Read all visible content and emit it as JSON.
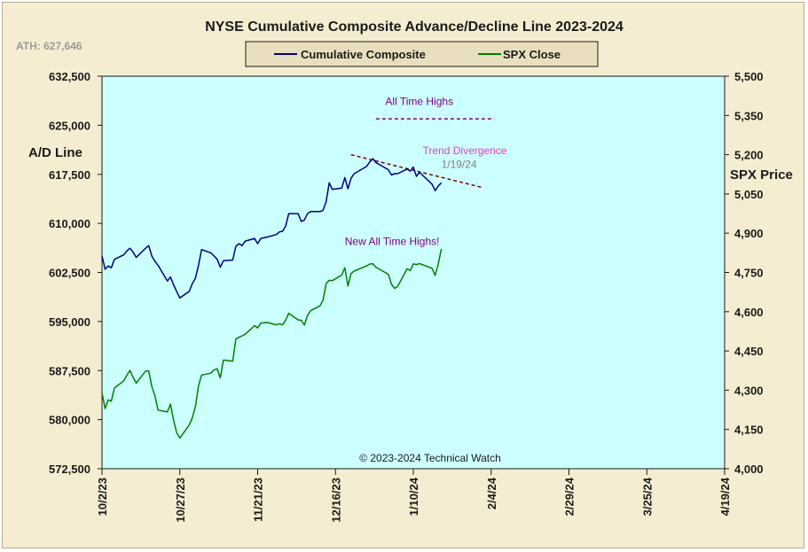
{
  "chart_data": {
    "type": "line",
    "title": "NYSE Cumulative  Composite  Advance/Decline  Line  2023-2024",
    "ath_label": "ATH: 627,646",
    "copyright": "© 2023-2024  Technical Watch",
    "left_axis": {
      "label": "A/D Line",
      "ylim": [
        572500,
        632500
      ],
      "ticks": [
        572500,
        580000,
        587500,
        595000,
        602500,
        610000,
        617500,
        625000,
        632500
      ],
      "tick_labels": [
        "572,500",
        "580,000",
        "587,500",
        "595,000",
        "602,500",
        "610,000",
        "617,500",
        "625,000",
        "632,500"
      ]
    },
    "right_axis": {
      "label": "SPX Price",
      "ylim": [
        4000,
        5500
      ],
      "ticks": [
        4000,
        4150,
        4300,
        4450,
        4600,
        4750,
        4900,
        5050,
        5200,
        5350,
        5500
      ],
      "tick_labels": [
        "4,000",
        "4,150",
        "4,300",
        "4,450",
        "4,600",
        "4,750",
        "4,900",
        "5,050",
        "5,200",
        "5,350",
        "5,500"
      ]
    },
    "x_axis": {
      "start": "2023-10-02",
      "end": "2024-04-19",
      "ticks": [
        "2023-10-02",
        "2023-10-27",
        "2023-11-21",
        "2023-12-16",
        "2024-01-10",
        "2024-02-04",
        "2024-02-29",
        "2024-03-25",
        "2024-04-19"
      ],
      "tick_labels": [
        "10/2/23",
        "10/27/23",
        "11/21/23",
        "12/16/23",
        "1/10/24",
        "2/4/24",
        "2/29/24",
        "3/25/24",
        "4/19/24"
      ]
    },
    "legend": {
      "placement": "top-center"
    },
    "grid": false,
    "colors": {
      "plot_bg": "#ccffff",
      "frame_bg": "#f5edd1",
      "ad_line": "#000080",
      "spx": "#008000",
      "trend": "#800000",
      "magenta": "#e040c0",
      "purple": "#800080"
    },
    "series": [
      {
        "name": "Cumulative Composite",
        "axis": "left",
        "color": "#000080",
        "points": [
          [
            "2023-10-02",
            605000
          ],
          [
            "2023-10-03",
            603000
          ],
          [
            "2023-10-04",
            603500
          ],
          [
            "2023-10-05",
            603200
          ],
          [
            "2023-10-06",
            604500
          ],
          [
            "2023-10-09",
            605200
          ],
          [
            "2023-10-10",
            605800
          ],
          [
            "2023-10-11",
            606200
          ],
          [
            "2023-10-12",
            605600
          ],
          [
            "2023-10-13",
            604800
          ],
          [
            "2023-10-16",
            606200
          ],
          [
            "2023-10-17",
            606600
          ],
          [
            "2023-10-18",
            605000
          ],
          [
            "2023-10-19",
            604200
          ],
          [
            "2023-10-20",
            603600
          ],
          [
            "2023-10-23",
            601200
          ],
          [
            "2023-10-24",
            601800
          ],
          [
            "2023-10-25",
            600600
          ],
          [
            "2023-10-26",
            599600
          ],
          [
            "2023-10-27",
            598600
          ],
          [
            "2023-10-30",
            599600
          ],
          [
            "2023-10-31",
            600800
          ],
          [
            "2023-11-01",
            601600
          ],
          [
            "2023-11-02",
            603600
          ],
          [
            "2023-11-03",
            606000
          ],
          [
            "2023-11-06",
            605500
          ],
          [
            "2023-11-07",
            605000
          ],
          [
            "2023-11-08",
            604500
          ],
          [
            "2023-11-09",
            603300
          ],
          [
            "2023-11-10",
            604300
          ],
          [
            "2023-11-13",
            604400
          ],
          [
            "2023-11-14",
            606500
          ],
          [
            "2023-11-15",
            606900
          ],
          [
            "2023-11-16",
            606600
          ],
          [
            "2023-11-17",
            607300
          ],
          [
            "2023-11-20",
            607700
          ],
          [
            "2023-11-21",
            606900
          ],
          [
            "2023-11-22",
            607700
          ],
          [
            "2023-11-24",
            607900
          ],
          [
            "2023-11-27",
            608300
          ],
          [
            "2023-11-28",
            608700
          ],
          [
            "2023-11-29",
            608800
          ],
          [
            "2023-11-30",
            609600
          ],
          [
            "2023-12-01",
            611500
          ],
          [
            "2023-12-04",
            611500
          ],
          [
            "2023-12-05",
            610300
          ],
          [
            "2023-12-06",
            610500
          ],
          [
            "2023-12-07",
            611500
          ],
          [
            "2023-12-08",
            611800
          ],
          [
            "2023-12-11",
            611800
          ],
          [
            "2023-12-12",
            612000
          ],
          [
            "2023-12-13",
            613300
          ],
          [
            "2023-12-14",
            616200
          ],
          [
            "2023-12-15",
            615200
          ],
          [
            "2023-12-18",
            615400
          ],
          [
            "2023-12-19",
            617000
          ],
          [
            "2023-12-20",
            615300
          ],
          [
            "2023-12-21",
            616900
          ],
          [
            "2023-12-22",
            617600
          ],
          [
            "2023-12-26",
            618700
          ],
          [
            "2023-12-27",
            619400
          ],
          [
            "2023-12-28",
            619900
          ],
          [
            "2023-12-29",
            619300
          ],
          [
            "2024-01-02",
            618200
          ],
          [
            "2024-01-03",
            617400
          ],
          [
            "2024-01-04",
            617600
          ],
          [
            "2024-01-05",
            617600
          ],
          [
            "2024-01-08",
            618300
          ],
          [
            "2024-01-09",
            618000
          ],
          [
            "2024-01-10",
            618600
          ],
          [
            "2024-01-11",
            617200
          ],
          [
            "2024-01-12",
            617800
          ],
          [
            "2024-01-16",
            616000
          ],
          [
            "2024-01-17",
            615000
          ],
          [
            "2024-01-18",
            615700
          ],
          [
            "2024-01-19",
            616200
          ]
        ]
      },
      {
        "name": "SPX Close",
        "axis": "right",
        "color": "#008000",
        "points": [
          [
            "2023-10-02",
            4290
          ],
          [
            "2023-10-03",
            4230
          ],
          [
            "2023-10-04",
            4263
          ],
          [
            "2023-10-05",
            4258
          ],
          [
            "2023-10-06",
            4308
          ],
          [
            "2023-10-09",
            4336
          ],
          [
            "2023-10-10",
            4358
          ],
          [
            "2023-10-11",
            4376
          ],
          [
            "2023-10-12",
            4349
          ],
          [
            "2023-10-13",
            4327
          ],
          [
            "2023-10-16",
            4373
          ],
          [
            "2023-10-17",
            4373
          ],
          [
            "2023-10-18",
            4314
          ],
          [
            "2023-10-19",
            4278
          ],
          [
            "2023-10-20",
            4224
          ],
          [
            "2023-10-23",
            4217
          ],
          [
            "2023-10-24",
            4247
          ],
          [
            "2023-10-25",
            4186
          ],
          [
            "2023-10-26",
            4137
          ],
          [
            "2023-10-27",
            4117
          ],
          [
            "2023-10-30",
            4167
          ],
          [
            "2023-10-31",
            4194
          ],
          [
            "2023-11-01",
            4237
          ],
          [
            "2023-11-02",
            4317
          ],
          [
            "2023-11-03",
            4358
          ],
          [
            "2023-11-06",
            4365
          ],
          [
            "2023-11-07",
            4378
          ],
          [
            "2023-11-08",
            4382
          ],
          [
            "2023-11-09",
            4347
          ],
          [
            "2023-11-10",
            4415
          ],
          [
            "2023-11-13",
            4411
          ],
          [
            "2023-11-14",
            4495
          ],
          [
            "2023-11-15",
            4502
          ],
          [
            "2023-11-16",
            4508
          ],
          [
            "2023-11-17",
            4514
          ],
          [
            "2023-11-20",
            4547
          ],
          [
            "2023-11-21",
            4538
          ],
          [
            "2023-11-22",
            4556
          ],
          [
            "2023-11-24",
            4559
          ],
          [
            "2023-11-27",
            4550
          ],
          [
            "2023-11-28",
            4554
          ],
          [
            "2023-11-29",
            4550
          ],
          [
            "2023-11-30",
            4568
          ],
          [
            "2023-12-01",
            4594
          ],
          [
            "2023-12-04",
            4569
          ],
          [
            "2023-12-05",
            4567
          ],
          [
            "2023-12-06",
            4549
          ],
          [
            "2023-12-07",
            4585
          ],
          [
            "2023-12-08",
            4604
          ],
          [
            "2023-12-11",
            4622
          ],
          [
            "2023-12-12",
            4644
          ],
          [
            "2023-12-13",
            4707
          ],
          [
            "2023-12-14",
            4720
          ],
          [
            "2023-12-15",
            4719
          ],
          [
            "2023-12-18",
            4740
          ],
          [
            "2023-12-19",
            4768
          ],
          [
            "2023-12-20",
            4698
          ],
          [
            "2023-12-21",
            4746
          ],
          [
            "2023-12-22",
            4755
          ],
          [
            "2023-12-26",
            4775
          ],
          [
            "2023-12-27",
            4782
          ],
          [
            "2023-12-28",
            4783
          ],
          [
            "2023-12-29",
            4770
          ],
          [
            "2024-01-02",
            4743
          ],
          [
            "2024-01-03",
            4705
          ],
          [
            "2024-01-04",
            4689
          ],
          [
            "2024-01-05",
            4697
          ],
          [
            "2024-01-08",
            4764
          ],
          [
            "2024-01-09",
            4757
          ],
          [
            "2024-01-10",
            4783
          ],
          [
            "2024-01-11",
            4780
          ],
          [
            "2024-01-12",
            4784
          ],
          [
            "2024-01-16",
            4766
          ],
          [
            "2024-01-17",
            4739
          ],
          [
            "2024-01-18",
            4781
          ],
          [
            "2024-01-19",
            4840
          ]
        ]
      }
    ],
    "annotations": [
      {
        "name": "all-time-highs",
        "text": "All Time Highs",
        "color": "#800080",
        "axis": "right",
        "x": "2024-01-01",
        "y": 5390
      },
      {
        "name": "all-time-highs-line",
        "type": "dashed-line",
        "color": "#800080",
        "axis": "right",
        "from": [
          "2023-12-29",
          5337
        ],
        "to": [
          "2024-02-05",
          5337
        ]
      },
      {
        "name": "trend-divergence",
        "text": "Trend  Divergence",
        "color": "#e040c0",
        "axis": "left",
        "x": "2024-01-13",
        "y": 620600
      },
      {
        "name": "trend-date",
        "text": "1/19/24",
        "color": "#808080",
        "axis": "left",
        "x": "2024-01-19",
        "y": 618500
      },
      {
        "name": "trend-line",
        "type": "dashed-line",
        "color": "#800000",
        "axis": "left",
        "from": [
          "2023-12-21",
          620500
        ],
        "to": [
          "2024-02-01",
          615500
        ]
      },
      {
        "name": "new-all-time-highs",
        "text": "New All Time Highs!",
        "color": "#800080",
        "axis": "right",
        "x": "2023-12-19",
        "y": 4855
      }
    ]
  }
}
